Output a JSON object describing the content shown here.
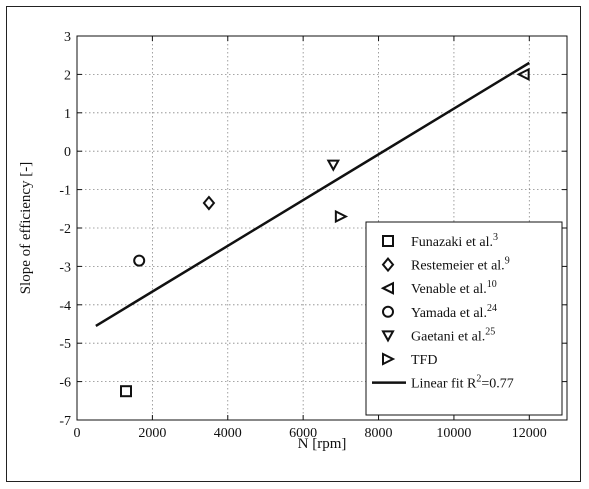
{
  "chart_data": {
    "type": "scatter",
    "xlabel": "N [rpm]",
    "ylabel": "Slope of efficiency [-]",
    "xlim": [
      0,
      13000
    ],
    "ylim": [
      -7,
      3
    ],
    "xticks": [
      0,
      2000,
      4000,
      6000,
      8000,
      10000,
      12000
    ],
    "yticks": [
      -7,
      -6,
      -5,
      -4,
      -3,
      -2,
      -1,
      0,
      1,
      2,
      3
    ],
    "grid": true,
    "legend_position": "bottom-right",
    "series": [
      {
        "name": "Funazaki et al.",
        "sup": "3",
        "marker": "square",
        "points": [
          [
            1300,
            -6.25
          ]
        ]
      },
      {
        "name": "Restemeier et al.",
        "sup": "9",
        "marker": "diamond",
        "points": [
          [
            3500,
            -1.35
          ]
        ]
      },
      {
        "name": "Venable et al.",
        "sup": "10",
        "marker": "triangle-left",
        "points": [
          [
            11850,
            2.0
          ]
        ]
      },
      {
        "name": "Yamada et al.",
        "sup": "24",
        "marker": "circle",
        "points": [
          [
            1650,
            -2.85
          ]
        ]
      },
      {
        "name": "Gaetani et al.",
        "sup": "25",
        "marker": "triangle-down",
        "points": [
          [
            6800,
            -0.35
          ]
        ]
      },
      {
        "name": "TFD",
        "sup": "",
        "marker": "triangle-right",
        "points": [
          [
            7000,
            -1.7
          ]
        ]
      }
    ],
    "fit": {
      "name": "Linear fit R",
      "sup": "2",
      "suffix": "=0.77",
      "line": [
        [
          500,
          -4.55
        ],
        [
          12000,
          2.3
        ]
      ]
    }
  }
}
